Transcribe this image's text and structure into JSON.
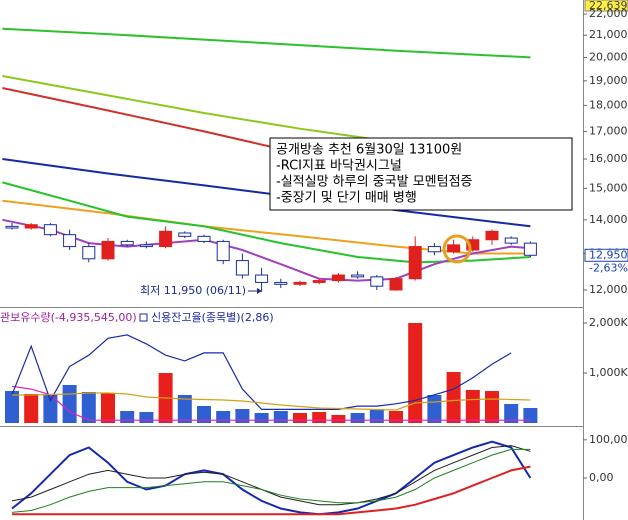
{
  "chart_data": [
    {
      "type": "candlestick",
      "log_scale": true,
      "ylim": [
        11610,
        22690
      ],
      "yticks": [
        {
          "value": 12000,
          "label": "12,000"
        },
        {
          "value": 13000,
          "label": "13,000"
        },
        {
          "value": 14000,
          "label": "14,000"
        },
        {
          "value": 15000,
          "label": "15,000"
        },
        {
          "value": 16000,
          "label": "16,000"
        },
        {
          "value": 17000,
          "label": "17,000"
        },
        {
          "value": 18000,
          "label": "18,000"
        },
        {
          "value": 19000,
          "label": "19,000"
        },
        {
          "value": 20000,
          "label": "20,000"
        },
        {
          "value": 21000,
          "label": "21,000"
        },
        {
          "value": 22000,
          "label": "22,000"
        }
      ],
      "up_color": "#e0201c",
      "down_color": "#1a2f9c",
      "down_fill": "#ffffff",
      "open": [
        13800,
        13750,
        13850,
        13550,
        13200,
        12850,
        13350,
        13250,
        13200,
        13600,
        13500,
        13350,
        12800,
        12400,
        12200,
        12150,
        12200,
        12250,
        12400,
        12350,
        12000,
        12300,
        13200,
        13050,
        13100,
        13400,
        13450,
        13300
      ],
      "high": [
        13900,
        13900,
        13900,
        13700,
        13300,
        13450,
        13400,
        13350,
        13800,
        13650,
        13550,
        13400,
        13000,
        12600,
        12300,
        12250,
        12300,
        12450,
        12500,
        12400,
        12350,
        13500,
        13300,
        13400,
        13500,
        13700,
        13500,
        13350
      ],
      "low": [
        13700,
        13700,
        13500,
        13100,
        12750,
        12800,
        13200,
        13150,
        13150,
        13450,
        13300,
        12700,
        12300,
        11950,
        12050,
        12100,
        12150,
        12200,
        12300,
        12000,
        11980,
        12250,
        12950,
        13000,
        13050,
        13250,
        13250,
        12900
      ],
      "close": [
        13750,
        13850,
        13550,
        13200,
        12850,
        13350,
        13250,
        13200,
        13650,
        13500,
        13350,
        12800,
        12400,
        12200,
        12150,
        12200,
        12250,
        12400,
        12350,
        12100,
        12300,
        13200,
        13050,
        13250,
        13400,
        13650,
        13300,
        12950
      ],
      "lines": [
        {
          "color": "#2cc22c",
          "x": [
            -0.5,
            5,
            10,
            15,
            20,
            27
          ],
          "values": [
            21300,
            21050,
            20800,
            20550,
            20300,
            20000
          ]
        },
        {
          "color": "#8cc81e",
          "x": [
            -0.5,
            5,
            10,
            15,
            20,
            24,
            27
          ],
          "values": [
            19200,
            18400,
            17700,
            17100,
            16600,
            16300,
            16150
          ]
        },
        {
          "color": "#d0302a",
          "x": [
            -0.5,
            5,
            10,
            15,
            20,
            27
          ],
          "values": [
            18700,
            17800,
            17000,
            16200,
            15500,
            14900
          ]
        },
        {
          "color": "#1428a8",
          "x": [
            -0.5,
            5,
            10,
            15,
            20,
            27
          ],
          "values": [
            16000,
            15500,
            15100,
            14700,
            14300,
            13800
          ]
        },
        {
          "color": "#f0a020",
          "x": [
            -0.5,
            5,
            10,
            15,
            20,
            24,
            27
          ],
          "values": [
            14600,
            14200,
            13800,
            13500,
            13200,
            13000,
            13000
          ]
        },
        {
          "color": "#22c42a",
          "x": [
            -0.5,
            3,
            6,
            10,
            14,
            18,
            21,
            24,
            27
          ],
          "values": [
            15200,
            14600,
            14100,
            13800,
            13300,
            12900,
            12750,
            12800,
            12900
          ]
        },
        {
          "color": "#a040c0",
          "x": [
            -0.5,
            2,
            4,
            6,
            8,
            10,
            12,
            14,
            16,
            18,
            20,
            22,
            24,
            26,
            27
          ],
          "values": [
            14000,
            13700,
            13300,
            13200,
            13300,
            13400,
            13100,
            12700,
            12300,
            12250,
            12300,
            12700,
            13000,
            13200,
            13150
          ]
        }
      ],
      "annotation": [
        "공개방송  추천  6월30일  13100원",
        "-RCI지표  바닥권시그널",
        "-실적실망  하루의  중국발  모멘텀점증",
        "-중장기  및  단기  매매  병행"
      ],
      "low_label": "최저 11,950 (06/11)",
      "top_label": "22,639",
      "last_label": "12,950",
      "change_label": "-2,63%"
    },
    {
      "type": "bar",
      "ylim": [
        0,
        2260
      ],
      "yticks": [
        {
          "value": 1000,
          "label": "1,000K"
        },
        {
          "value": 2000,
          "label": "2,000K"
        }
      ],
      "values": [
        640,
        580,
        560,
        760,
        620,
        600,
        240,
        220,
        1000,
        560,
        340,
        240,
        280,
        200,
        240,
        200,
        220,
        160,
        200,
        260,
        240,
        2000,
        560,
        1020,
        660,
        640,
        380,
        300
      ],
      "colors": [
        "#2f5fd0",
        "#e8201c",
        "#2f5fd0",
        "#2f5fd0",
        "#2f5fd0",
        "#e8201c",
        "#2f5fd0",
        "#2f5fd0",
        "#e8201c",
        "#2f5fd0",
        "#2f5fd0",
        "#2f5fd0",
        "#2f5fd0",
        "#2f5fd0",
        "#2f5fd0",
        "#e8201c",
        "#e8201c",
        "#e8201c",
        "#2f5fd0",
        "#2f5fd0",
        "#e8201c",
        "#e8201c",
        "#2f5fd0",
        "#e8201c",
        "#e8201c",
        "#e8201c",
        "#2f5fd0",
        "#2f5fd0"
      ],
      "series": [
        {
          "name": "관보유수량(-4,935,545,00)",
          "color": "#e020c0",
          "ylim": [
            -5000000,
            -4600000
          ],
          "values": [
            -4870000,
            -4880000,
            -4900000,
            -4960000,
            -4990000,
            -4990000,
            -4990000,
            -4990000,
            -4990000,
            -4990000,
            -4990000,
            -4990000,
            -4990000,
            -4990000,
            -4990000,
            -4990000,
            -4990000,
            -4990000,
            -4990000,
            -4990000,
            -4990000,
            -4990000,
            -4990000,
            -4990000,
            -4990000,
            -4990000,
            -4990000,
            -4990000
          ]
        },
        {
          "name": "신용잔고율(종목별)(2,86)",
          "color": "#1a2aa8",
          "ylim": [
            2.0,
            3.0
          ],
          "values": [
            2.25,
            2.68,
            2.2,
            2.5,
            2.6,
            2.75,
            2.78,
            2.7,
            2.6,
            2.55,
            2.62,
            2.62,
            2.3,
            2.12,
            2.12,
            2.12,
            2.12,
            2.12,
            2.15,
            2.15,
            2.17,
            2.2,
            2.25,
            2.3,
            2.4,
            2.52,
            2.62,
            null
          ]
        },
        {
          "color": "#d4a017",
          "values": [
            560,
            560,
            570,
            580,
            600,
            600,
            580,
            520,
            500,
            480,
            470,
            460,
            440,
            400,
            360,
            330,
            300,
            290,
            280,
            270,
            260,
            400,
            420,
            450,
            470,
            480,
            470,
            460
          ]
        }
      ]
    },
    {
      "type": "line",
      "ylim": [
        -110,
        131
      ],
      "yticks": [
        {
          "value": 0,
          "label": "0,00"
        },
        {
          "value": 100,
          "label": "100,00"
        }
      ],
      "series": [
        {
          "color": "#1428b0",
          "values": [
            -80,
            -40,
            10,
            60,
            80,
            40,
            -10,
            -30,
            -20,
            10,
            20,
            10,
            -30,
            -60,
            -80,
            -90,
            -95,
            -90,
            -80,
            -60,
            -40,
            0,
            40,
            60,
            80,
            95,
            80,
            0
          ]
        },
        {
          "color": "#202020",
          "values": [
            -60,
            -50,
            -30,
            -10,
            10,
            20,
            10,
            0,
            0,
            10,
            15,
            10,
            -10,
            -30,
            -50,
            -60,
            -70,
            -70,
            -65,
            -55,
            -40,
            -10,
            20,
            40,
            60,
            80,
            85,
            70
          ]
        },
        {
          "color": "#208020",
          "values": [
            -90,
            -85,
            -70,
            -50,
            -35,
            -25,
            -25,
            -25,
            -20,
            -15,
            -10,
            -10,
            -20,
            -30,
            -45,
            -55,
            -60,
            -65,
            -65,
            -60,
            -50,
            -30,
            0,
            20,
            40,
            60,
            75,
            75
          ]
        },
        {
          "color": "#e02020",
          "values": [
            -95,
            -95,
            -95,
            -95,
            -95,
            -95,
            -95,
            -95,
            -95,
            -95,
            -95,
            -95,
            -95,
            -95,
            -95,
            -95,
            -95,
            -95,
            -90,
            -85,
            -80,
            -70,
            -55,
            -40,
            -20,
            0,
            20,
            30
          ]
        }
      ]
    }
  ]
}
